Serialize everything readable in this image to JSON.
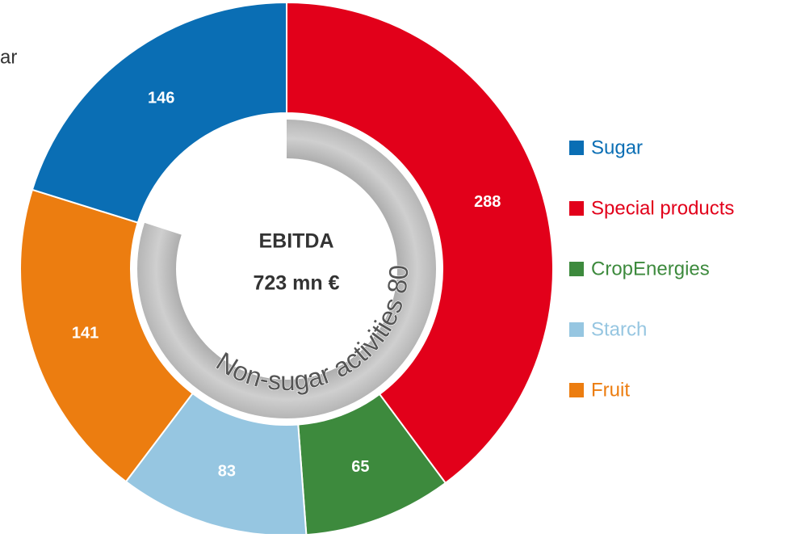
{
  "corner_text": "ar",
  "chart_data": {
    "type": "donut",
    "center_title": "EBITDA",
    "center_value": "723 mn €",
    "arc_label": "Non-sugar activities 80%",
    "arc_value": 80,
    "categories": [
      "Sugar",
      "Special products",
      "CropEnergies",
      "Starch",
      "Fruit"
    ],
    "values": [
      146,
      288,
      65,
      83,
      141
    ],
    "colors": [
      "#0a6eb4",
      "#e2001a",
      "#3d8a3d",
      "#96c6e1",
      "#ec7d10"
    ],
    "legend": "right"
  }
}
